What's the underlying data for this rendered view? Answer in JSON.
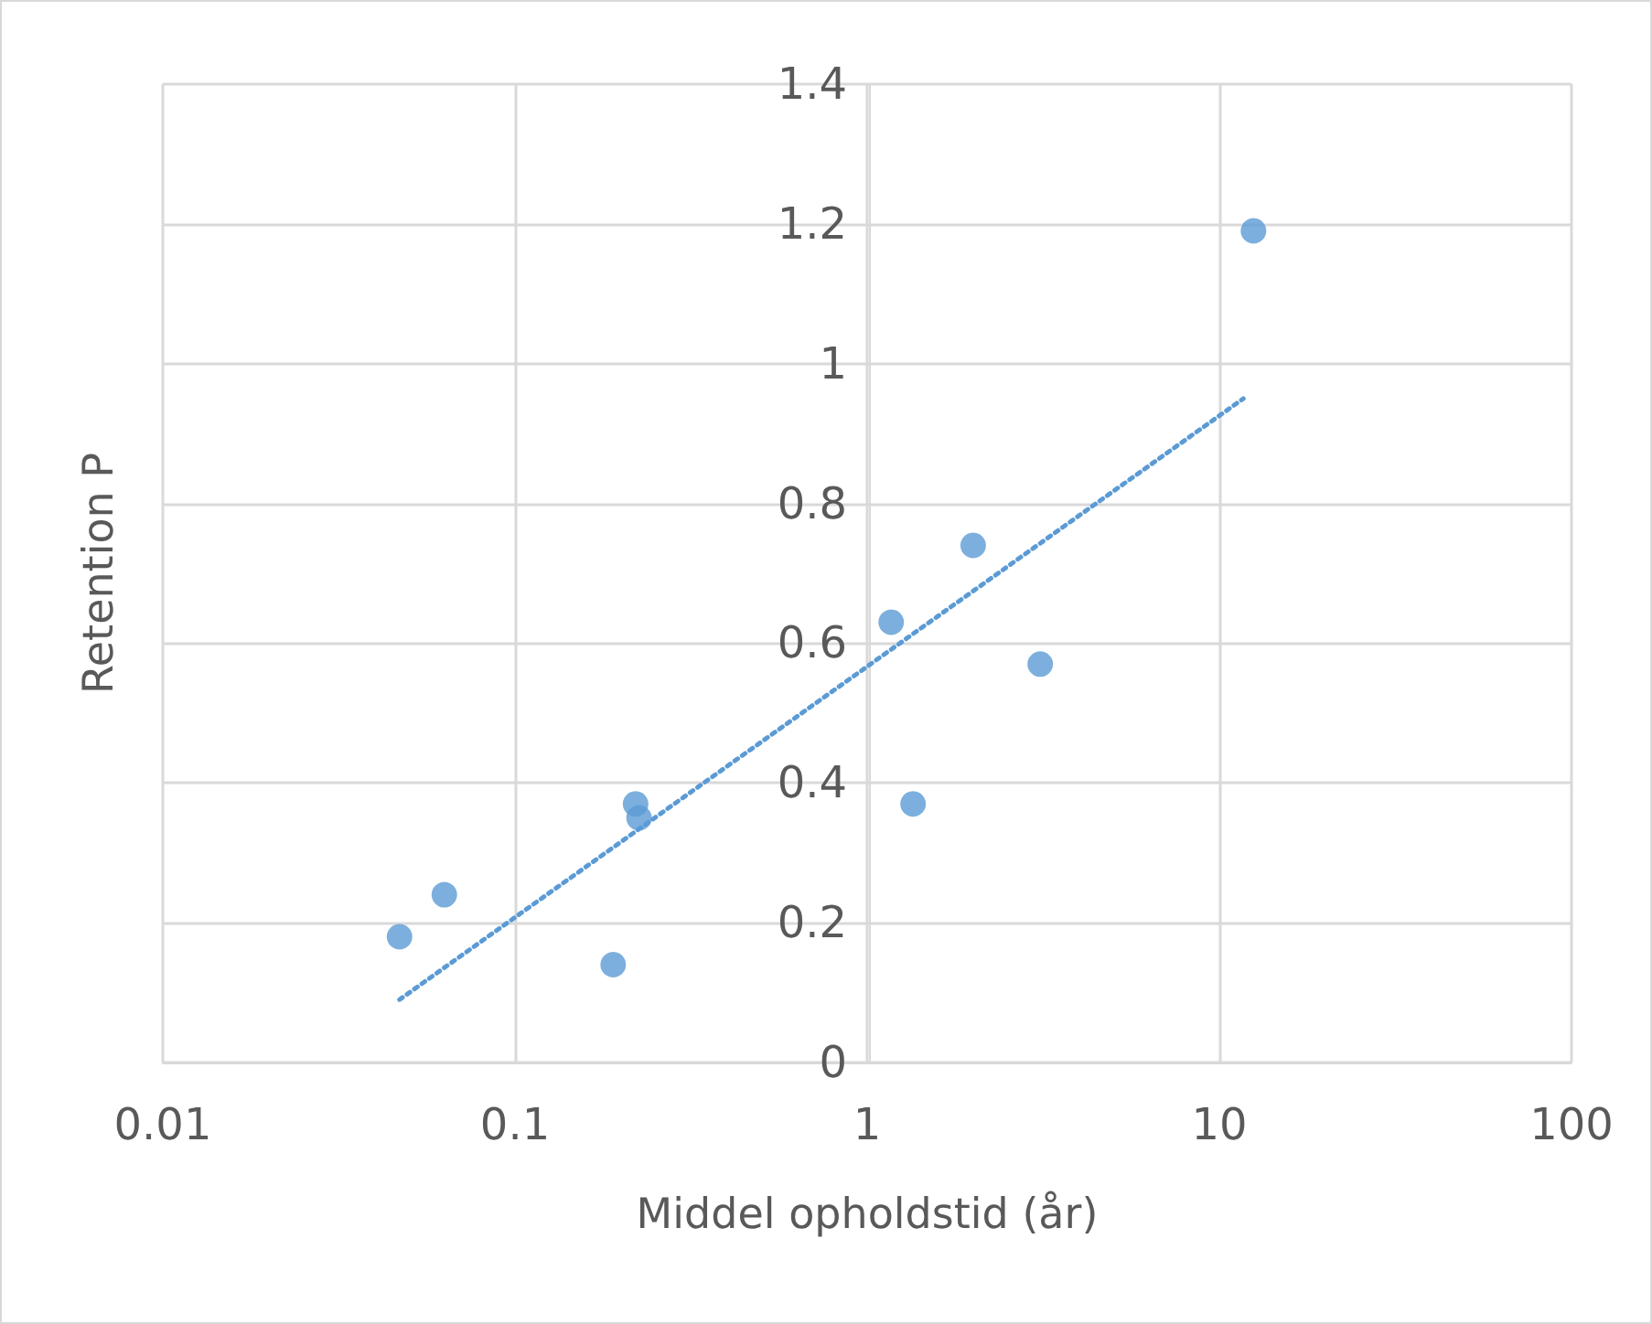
{
  "chart_data": {
    "type": "scatter",
    "xlabel": "Middel opholdstid (år)",
    "ylabel": "Retention P",
    "log": "x",
    "grid": true,
    "marker": "circle",
    "xlim": [
      0.01,
      100
    ],
    "xticks": [
      0.01,
      0.1,
      1,
      10,
      100
    ],
    "ylim": [
      0,
      1.4
    ],
    "yticks": [
      0,
      0.2,
      0.4,
      0.6,
      0.8,
      1,
      1.2,
      1.4
    ],
    "series": [
      {
        "color": "#5b9bd5",
        "x": [
          0.047,
          0.063,
          0.19,
          0.22,
          0.225,
          1.17,
          1.35,
          2.0,
          3.1,
          12.5
        ],
        "values": [
          0.18,
          0.24,
          0.14,
          0.37,
          0.35,
          0.63,
          0.37,
          0.74,
          0.57,
          1.19
        ]
      },
      {
        "type": "line",
        "color": "#5b9bd5",
        "line_style": "dotted",
        "marker": "none",
        "x": [
          0.047,
          11.7
        ],
        "values": [
          0.09,
          0.95
        ]
      }
    ]
  }
}
